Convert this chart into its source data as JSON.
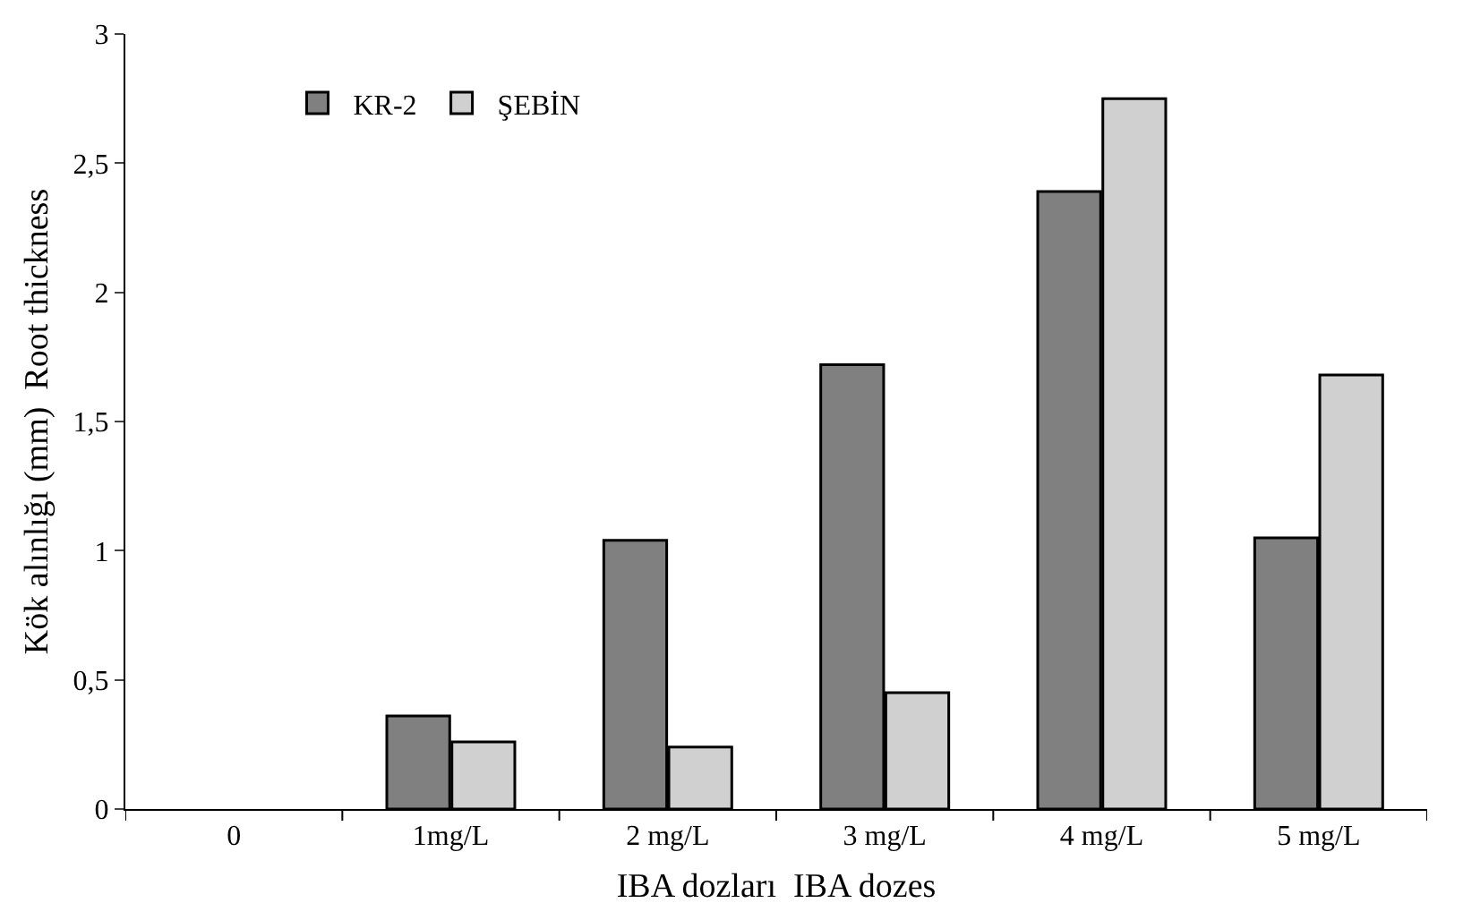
{
  "chart_data": {
    "type": "bar",
    "xlabel": "IBA dozları  IBA dozes",
    "ylabel": "Kök alınlığı (mm)  Root thickness",
    "categories": [
      "0",
      "1mg/L",
      "2 mg/L",
      "3 mg/L",
      "4 mg/L",
      "5 mg/L"
    ],
    "series": [
      {
        "name": "KR-2",
        "color": "#808080",
        "values": [
          null,
          0.36,
          1.04,
          1.72,
          2.39,
          1.05
        ]
      },
      {
        "name": "ŞEBİN",
        "color": "#d0d0d0",
        "values": [
          null,
          0.26,
          0.24,
          0.45,
          2.75,
          1.68
        ]
      }
    ],
    "ylim": [
      0,
      3
    ],
    "yticks": [
      0,
      {
        "value": 0.5,
        "label": "0,5"
      },
      1,
      {
        "value": 1.5,
        "label": "1,5"
      },
      2,
      {
        "value": 2.5,
        "label": "2,5"
      },
      3
    ],
    "grid": false,
    "legend": "top left"
  }
}
